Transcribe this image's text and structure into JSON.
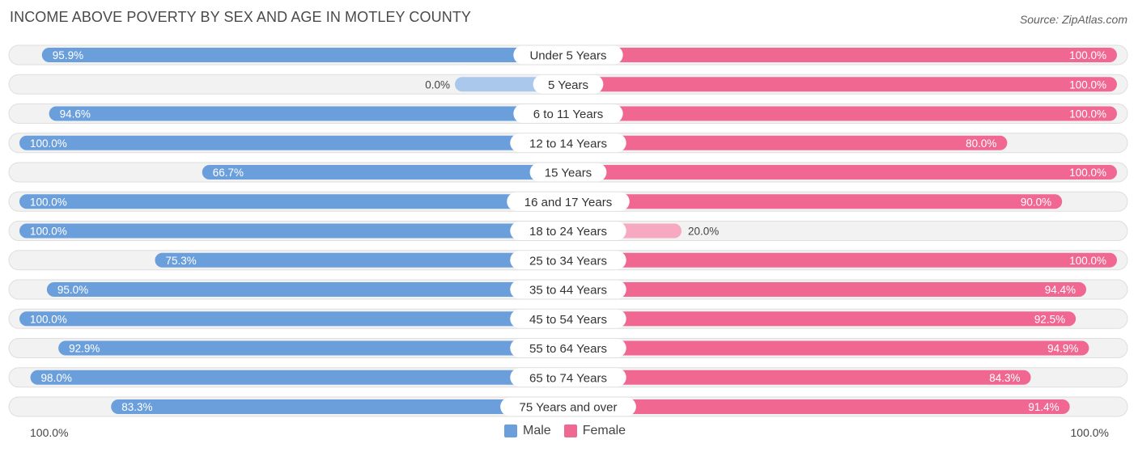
{
  "chart_data": {
    "type": "bar",
    "orientation": "horizontal-diverging",
    "title": "INCOME ABOVE POVERTY BY SEX AND AGE IN MOTLEY COUNTY",
    "source": "Source: ZipAtlas.com",
    "categories": [
      "Under 5 Years",
      "5 Years",
      "6 to 11 Years",
      "12 to 14 Years",
      "15 Years",
      "16 and 17 Years",
      "18 to 24 Years",
      "25 to 34 Years",
      "35 to 44 Years",
      "45 to 54 Years",
      "55 to 64 Years",
      "65 to 74 Years",
      "75 Years and over"
    ],
    "series": [
      {
        "name": "Male",
        "color": "#6a9fdc",
        "light_color": "#a9c8ec",
        "values": [
          95.9,
          0.0,
          94.6,
          100.0,
          66.7,
          100.0,
          100.0,
          75.3,
          95.0,
          100.0,
          92.9,
          98.0,
          83.3
        ],
        "labels": [
          "95.9%",
          "0.0%",
          "94.6%",
          "100.0%",
          "66.7%",
          "100.0%",
          "100.0%",
          "75.3%",
          "95.0%",
          "100.0%",
          "92.9%",
          "98.0%",
          "83.3%"
        ]
      },
      {
        "name": "Female",
        "color": "#f06892",
        "light_color": "#f7a9c2",
        "values": [
          100.0,
          100.0,
          100.0,
          80.0,
          100.0,
          90.0,
          20.0,
          100.0,
          94.4,
          92.5,
          94.9,
          84.3,
          91.4
        ],
        "labels": [
          "100.0%",
          "100.0%",
          "100.0%",
          "80.0%",
          "100.0%",
          "90.0%",
          "20.0%",
          "100.0%",
          "94.4%",
          "92.5%",
          "94.9%",
          "84.3%",
          "91.4%"
        ]
      }
    ],
    "xlim": [
      0,
      100
    ],
    "axis_left_label": "100.0%",
    "axis_right_label": "100.0%",
    "legend": [
      "Male",
      "Female"
    ],
    "legend_position": "bottom-center"
  }
}
